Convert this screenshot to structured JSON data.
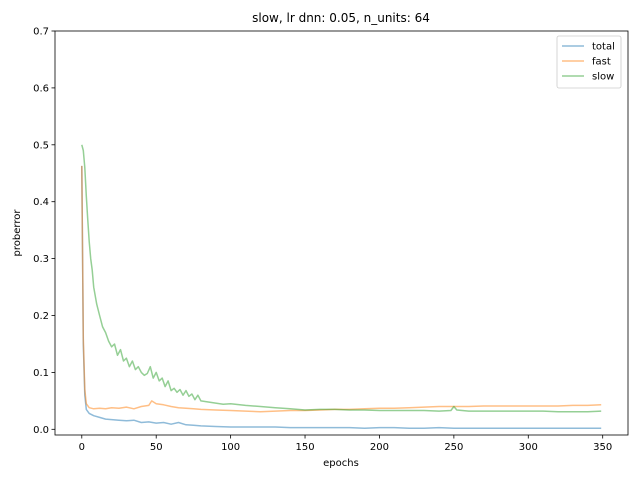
{
  "chart_data": {
    "type": "line",
    "title": "slow, lr dnn: 0.05, n_units: 64",
    "xlabel": "epochs",
    "ylabel": "proberror",
    "xlim": [
      -18,
      367
    ],
    "ylim": [
      -0.01,
      0.7
    ],
    "xticks": [
      0,
      50,
      100,
      150,
      200,
      250,
      300,
      350
    ],
    "yticks": [
      0.0,
      0.1,
      0.2,
      0.3,
      0.4,
      0.5,
      0.6,
      0.7
    ],
    "xtick_labels": [
      "0",
      "50",
      "100",
      "150",
      "200",
      "250",
      "300",
      "350"
    ],
    "ytick_labels": [
      "0.0",
      "0.1",
      "0.2",
      "0.3",
      "0.4",
      "0.5",
      "0.6",
      "0.7"
    ],
    "grid": false,
    "legend_position": "upper right",
    "series": [
      {
        "name": "total",
        "color": "#1f77b4",
        "x": [
          0,
          1,
          2,
          3,
          5,
          8,
          12,
          16,
          20,
          25,
          30,
          35,
          40,
          45,
          50,
          55,
          60,
          65,
          70,
          75,
          80,
          90,
          100,
          110,
          120,
          130,
          140,
          150,
          160,
          170,
          180,
          190,
          200,
          210,
          220,
          230,
          240,
          250,
          260,
          270,
          280,
          290,
          300,
          310,
          320,
          330,
          340,
          349
        ],
        "y": [
          0.463,
          0.15,
          0.06,
          0.035,
          0.028,
          0.024,
          0.021,
          0.018,
          0.017,
          0.016,
          0.015,
          0.016,
          0.012,
          0.013,
          0.011,
          0.012,
          0.009,
          0.012,
          0.008,
          0.007,
          0.006,
          0.005,
          0.004,
          0.004,
          0.004,
          0.004,
          0.003,
          0.003,
          0.003,
          0.003,
          0.003,
          0.002,
          0.003,
          0.003,
          0.002,
          0.002,
          0.003,
          0.002,
          0.002,
          0.002,
          0.002,
          0.002,
          0.002,
          0.002,
          0.002,
          0.002,
          0.002,
          0.002
        ]
      },
      {
        "name": "fast",
        "color": "#ff7f0e",
        "x": [
          0,
          1,
          2,
          3,
          5,
          8,
          12,
          16,
          20,
          25,
          30,
          35,
          40,
          45,
          47,
          50,
          55,
          60,
          65,
          70,
          75,
          80,
          90,
          100,
          110,
          120,
          130,
          140,
          150,
          160,
          170,
          180,
          190,
          200,
          210,
          220,
          230,
          240,
          250,
          260,
          270,
          280,
          290,
          300,
          310,
          320,
          330,
          340,
          349
        ],
        "y": [
          0.463,
          0.16,
          0.07,
          0.045,
          0.038,
          0.036,
          0.037,
          0.036,
          0.038,
          0.037,
          0.039,
          0.036,
          0.04,
          0.042,
          0.05,
          0.045,
          0.043,
          0.04,
          0.038,
          0.037,
          0.036,
          0.035,
          0.034,
          0.033,
          0.032,
          0.031,
          0.032,
          0.033,
          0.033,
          0.034,
          0.035,
          0.035,
          0.036,
          0.037,
          0.037,
          0.038,
          0.039,
          0.04,
          0.04,
          0.04,
          0.041,
          0.041,
          0.041,
          0.041,
          0.041,
          0.041,
          0.042,
          0.042,
          0.043
        ]
      },
      {
        "name": "slow",
        "color": "#2ca02c",
        "x": [
          0,
          1,
          2,
          3,
          4,
          5,
          6,
          7,
          8,
          10,
          12,
          14,
          16,
          18,
          20,
          22,
          24,
          26,
          28,
          30,
          32,
          34,
          36,
          38,
          40,
          42,
          44,
          46,
          48,
          50,
          52,
          54,
          56,
          58,
          60,
          62,
          64,
          66,
          68,
          70,
          72,
          74,
          76,
          78,
          80,
          85,
          90,
          95,
          100,
          110,
          120,
          130,
          140,
          150,
          160,
          170,
          180,
          190,
          200,
          210,
          220,
          230,
          240,
          248,
          250,
          252,
          260,
          270,
          280,
          290,
          300,
          310,
          320,
          330,
          340,
          349
        ],
        "y": [
          0.5,
          0.49,
          0.46,
          0.41,
          0.37,
          0.33,
          0.3,
          0.28,
          0.25,
          0.22,
          0.2,
          0.18,
          0.17,
          0.155,
          0.145,
          0.15,
          0.13,
          0.14,
          0.12,
          0.125,
          0.11,
          0.12,
          0.105,
          0.11,
          0.1,
          0.095,
          0.098,
          0.11,
          0.09,
          0.1,
          0.085,
          0.09,
          0.075,
          0.085,
          0.068,
          0.072,
          0.065,
          0.07,
          0.06,
          0.068,
          0.058,
          0.062,
          0.052,
          0.06,
          0.05,
          0.048,
          0.046,
          0.044,
          0.045,
          0.042,
          0.04,
          0.038,
          0.036,
          0.034,
          0.035,
          0.035,
          0.034,
          0.034,
          0.033,
          0.033,
          0.033,
          0.033,
          0.032,
          0.033,
          0.04,
          0.034,
          0.032,
          0.032,
          0.032,
          0.032,
          0.032,
          0.032,
          0.031,
          0.031,
          0.031,
          0.032
        ]
      }
    ]
  }
}
